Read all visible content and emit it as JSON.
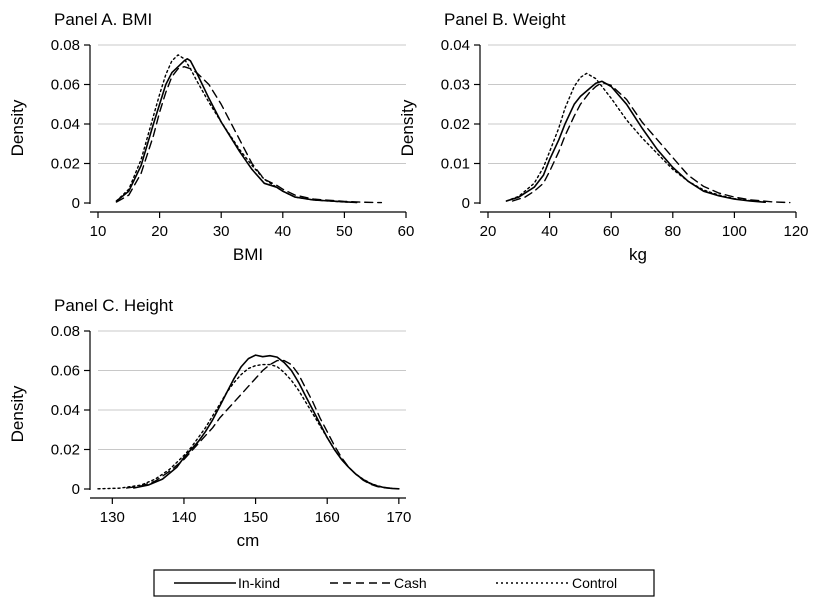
{
  "chart_data": [
    {
      "type": "line",
      "title": "Panel A. BMI",
      "xlabel": "BMI",
      "ylabel": "Density",
      "xlim": [
        10,
        60
      ],
      "ylim": [
        0,
        0.08
      ],
      "xticks": [
        10,
        20,
        30,
        40,
        50,
        60
      ],
      "yticks": [
        0,
        0.02,
        0.04,
        0.06,
        0.08
      ],
      "ytick_labels": [
        "0",
        "0.02",
        "0.04",
        "0.06",
        "0.08"
      ],
      "grid": true,
      "series": [
        {
          "name": "In-kind",
          "style": "solid",
          "x": [
            13,
            15,
            17,
            19,
            20,
            21,
            22,
            23,
            24,
            24.5,
            25,
            26,
            28,
            30,
            33,
            35,
            37,
            39,
            40,
            42,
            45,
            50,
            52
          ],
          "y": [
            0.001,
            0.006,
            0.019,
            0.04,
            0.05,
            0.06,
            0.066,
            0.069,
            0.072,
            0.073,
            0.072,
            0.066,
            0.053,
            0.041,
            0.026,
            0.017,
            0.01,
            0.008,
            0.006,
            0.003,
            0.0015,
            0.0006,
            0.0003
          ]
        },
        {
          "name": "Cash",
          "style": "dashed",
          "x": [
            13,
            15,
            17,
            19,
            20,
            21,
            22,
            23,
            24,
            25,
            26,
            28,
            30,
            33,
            35,
            37,
            39,
            40,
            42,
            45,
            50,
            53,
            56
          ],
          "y": [
            0.0005,
            0.004,
            0.015,
            0.034,
            0.046,
            0.056,
            0.064,
            0.068,
            0.069,
            0.068,
            0.066,
            0.06,
            0.05,
            0.032,
            0.02,
            0.012,
            0.009,
            0.007,
            0.004,
            0.002,
            0.0008,
            0.0004,
            0.0002
          ]
        },
        {
          "name": "Control",
          "style": "dotted",
          "x": [
            13,
            15,
            17,
            19,
            20,
            21,
            22,
            23,
            24,
            25,
            26,
            28,
            30,
            33,
            35,
            37,
            39,
            40,
            42,
            45,
            50,
            52
          ],
          "y": [
            0.001,
            0.007,
            0.022,
            0.044,
            0.055,
            0.065,
            0.072,
            0.075,
            0.073,
            0.068,
            0.062,
            0.051,
            0.041,
            0.027,
            0.019,
            0.012,
            0.008,
            0.006,
            0.003,
            0.0015,
            0.0005,
            0.0003
          ]
        }
      ]
    },
    {
      "type": "line",
      "title": "Panel B. Weight",
      "xlabel": "kg",
      "ylabel": "Density",
      "xlim": [
        20,
        120
      ],
      "ylim": [
        0,
        0.04
      ],
      "xticks": [
        20,
        40,
        60,
        80,
        100,
        120
      ],
      "yticks": [
        0,
        0.01,
        0.02,
        0.03,
        0.04
      ],
      "ytick_labels": [
        "0",
        "0.01",
        "0.02",
        "0.03",
        "0.04"
      ],
      "grid": true,
      "series": [
        {
          "name": "In-kind",
          "style": "solid",
          "x": [
            26,
            30,
            35,
            38,
            40,
            43,
            45,
            48,
            50,
            53,
            55,
            57,
            60,
            65,
            70,
            75,
            80,
            85,
            90,
            95,
            100,
            105,
            110
          ],
          "y": [
            0.0005,
            0.0015,
            0.004,
            0.007,
            0.011,
            0.016,
            0.02,
            0.025,
            0.027,
            0.029,
            0.0303,
            0.0308,
            0.0295,
            0.025,
            0.019,
            0.0135,
            0.009,
            0.0055,
            0.003,
            0.0018,
            0.001,
            0.0005,
            0.0002
          ]
        },
        {
          "name": "Cash",
          "style": "dashed",
          "x": [
            28,
            32,
            35,
            38,
            40,
            43,
            45,
            48,
            50,
            53,
            55,
            57,
            60,
            65,
            70,
            75,
            80,
            85,
            90,
            95,
            100,
            105,
            112,
            118
          ],
          "y": [
            0.0005,
            0.0015,
            0.003,
            0.005,
            0.008,
            0.013,
            0.017,
            0.022,
            0.025,
            0.028,
            0.0295,
            0.0305,
            0.0298,
            0.0262,
            0.0205,
            0.016,
            0.0115,
            0.007,
            0.0042,
            0.0025,
            0.0015,
            0.0008,
            0.0003,
            0.0001
          ]
        },
        {
          "name": "Control",
          "style": "dotted",
          "x": [
            26,
            30,
            35,
            38,
            40,
            43,
            45,
            48,
            50,
            52,
            55,
            57,
            60,
            65,
            70,
            75,
            80,
            85,
            90,
            95,
            100,
            105,
            110
          ],
          "y": [
            0.0005,
            0.0017,
            0.005,
            0.009,
            0.013,
            0.019,
            0.024,
            0.0295,
            0.0318,
            0.0328,
            0.0315,
            0.0295,
            0.0265,
            0.021,
            0.0165,
            0.0125,
            0.0085,
            0.0055,
            0.0033,
            0.002,
            0.0011,
            0.0006,
            0.0002
          ]
        }
      ]
    },
    {
      "type": "line",
      "title": "Panel C. Height",
      "xlabel": "cm",
      "ylabel": "Density",
      "xlim": [
        128,
        171
      ],
      "ylim": [
        0,
        0.08
      ],
      "xticks": [
        130,
        140,
        150,
        160,
        170
      ],
      "yticks": [
        0,
        0.02,
        0.04,
        0.06,
        0.08
      ],
      "ytick_labels": [
        "0",
        "0.02",
        "0.04",
        "0.06",
        "0.08"
      ],
      "grid": true,
      "series": [
        {
          "name": "In-kind",
          "style": "solid",
          "x": [
            133,
            135,
            137,
            139,
            140,
            141,
            142,
            143,
            144,
            145,
            146,
            147,
            148,
            149,
            150,
            151,
            152,
            153,
            154,
            155,
            156,
            157,
            158,
            159,
            160,
            161,
            162,
            163,
            164,
            165,
            166,
            167,
            168,
            169,
            170
          ],
          "y": [
            0.0005,
            0.002,
            0.005,
            0.011,
            0.016,
            0.02,
            0.024,
            0.029,
            0.035,
            0.042,
            0.049,
            0.056,
            0.062,
            0.066,
            0.0678,
            0.067,
            0.0675,
            0.0668,
            0.064,
            0.06,
            0.054,
            0.047,
            0.04,
            0.033,
            0.026,
            0.02,
            0.015,
            0.011,
            0.0075,
            0.0048,
            0.0028,
            0.0015,
            0.0007,
            0.0003,
            0.0001
          ]
        },
        {
          "name": "Cash",
          "style": "dashed",
          "x": [
            132,
            134,
            136,
            138,
            140,
            141,
            142,
            143,
            144,
            145,
            146,
            147,
            148,
            149,
            150,
            151,
            152,
            153,
            154,
            155,
            156,
            157,
            158,
            159,
            160,
            161,
            162,
            163,
            164,
            165,
            166,
            167,
            168,
            170
          ],
          "y": [
            0.0005,
            0.0015,
            0.004,
            0.009,
            0.015,
            0.019,
            0.023,
            0.027,
            0.031,
            0.036,
            0.04,
            0.044,
            0.048,
            0.052,
            0.056,
            0.06,
            0.063,
            0.065,
            0.065,
            0.063,
            0.058,
            0.051,
            0.044,
            0.036,
            0.029,
            0.022,
            0.016,
            0.011,
            0.0075,
            0.0045,
            0.0025,
            0.0012,
            0.0006,
            0.0001
          ]
        },
        {
          "name": "Control",
          "style": "dotted",
          "x": [
            128,
            131,
            134,
            136,
            138,
            140,
            141,
            142,
            143,
            144,
            145,
            146,
            147,
            148,
            149,
            150,
            151,
            152,
            153,
            154,
            155,
            156,
            157,
            158,
            159,
            160,
            161,
            162,
            163,
            164,
            165,
            166,
            167,
            168,
            169
          ],
          "y": [
            0.0001,
            0.0004,
            0.002,
            0.005,
            0.01,
            0.017,
            0.021,
            0.026,
            0.031,
            0.037,
            0.043,
            0.049,
            0.054,
            0.058,
            0.061,
            0.0625,
            0.063,
            0.063,
            0.062,
            0.059,
            0.055,
            0.05,
            0.044,
            0.038,
            0.032,
            0.026,
            0.02,
            0.015,
            0.011,
            0.0075,
            0.005,
            0.003,
            0.0016,
            0.0008,
            0.0003
          ]
        }
      ]
    }
  ],
  "legend": {
    "placement": "bottom-center",
    "entries": [
      {
        "label": "In-kind",
        "style": "solid"
      },
      {
        "label": "Cash",
        "style": "dashed"
      },
      {
        "label": "Control",
        "style": "dotted"
      }
    ]
  }
}
